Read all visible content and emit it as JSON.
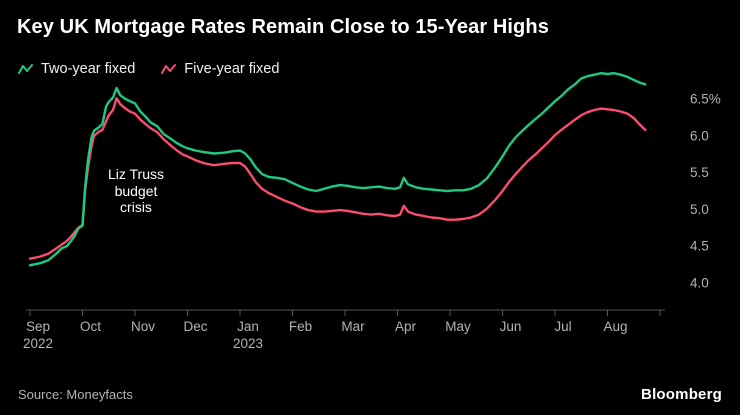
{
  "chart_data": {
    "type": "line",
    "title": "Key UK Mortgage Rates Remain Close to 15-Year Highs",
    "x_unit": "months since Sep 1, 2022 (0 = Sep 2022)",
    "x_range": [
      0,
      12
    ],
    "y_range": [
      3.9,
      7.0
    ],
    "grid": false,
    "legend_position": "top-left",
    "x_axis": {
      "months": [
        "Sep",
        "Oct",
        "Nov",
        "Dec",
        "Jan",
        "Feb",
        "Mar",
        "Apr",
        "May",
        "Jun",
        "Jul",
        "Aug"
      ],
      "year_labels": [
        {
          "label": "2022",
          "month_index": 0
        },
        {
          "label": "2023",
          "month_index": 4
        }
      ]
    },
    "y_axis": {
      "unit": "%",
      "side": "right",
      "ticks": [
        4.0,
        4.5,
        5.0,
        5.5,
        6.0,
        6.5
      ],
      "tick_labels": [
        "4.0",
        "4.5",
        "5.0",
        "5.5",
        "6.0",
        "6.5%"
      ]
    },
    "x": [
      0,
      0.2,
      0.35,
      0.5,
      0.6,
      0.7,
      0.78,
      0.85,
      0.92,
      1.0,
      1.05,
      1.1,
      1.17,
      1.22,
      1.3,
      1.38,
      1.45,
      1.5,
      1.58,
      1.65,
      1.72,
      1.8,
      1.9,
      2.0,
      2.1,
      2.2,
      2.3,
      2.42,
      2.55,
      2.68,
      2.8,
      2.9,
      3.0,
      3.15,
      3.3,
      3.5,
      3.7,
      3.85,
      4.0,
      4.1,
      4.2,
      4.3,
      4.42,
      4.55,
      4.7,
      4.85,
      5.0,
      5.15,
      5.3,
      5.45,
      5.6,
      5.75,
      5.9,
      6.05,
      6.2,
      6.35,
      6.5,
      6.65,
      6.8,
      6.95,
      7.05,
      7.12,
      7.2,
      7.35,
      7.5,
      7.65,
      7.8,
      7.95,
      8.1,
      8.25,
      8.4,
      8.55,
      8.7,
      8.85,
      9.0,
      9.12,
      9.25,
      9.38,
      9.5,
      9.63,
      9.75,
      9.88,
      10.0,
      10.12,
      10.25,
      10.38,
      10.5,
      10.62,
      10.75,
      10.88,
      11.0,
      11.12,
      11.25,
      11.38,
      11.5,
      11.62,
      11.72
    ],
    "series": [
      {
        "id": "two-year-fixed",
        "name": "Two-year fixed",
        "color": "#1ec981",
        "values": [
          4.24,
          4.27,
          4.31,
          4.4,
          4.47,
          4.5,
          4.57,
          4.64,
          4.74,
          4.78,
          5.3,
          5.65,
          5.97,
          6.07,
          6.11,
          6.16,
          6.4,
          6.46,
          6.52,
          6.65,
          6.55,
          6.51,
          6.47,
          6.44,
          6.33,
          6.26,
          6.18,
          6.13,
          6.02,
          5.96,
          5.9,
          5.86,
          5.83,
          5.8,
          5.78,
          5.76,
          5.77,
          5.79,
          5.8,
          5.76,
          5.68,
          5.57,
          5.48,
          5.44,
          5.43,
          5.41,
          5.36,
          5.31,
          5.27,
          5.25,
          5.28,
          5.31,
          5.33,
          5.32,
          5.3,
          5.29,
          5.3,
          5.31,
          5.29,
          5.28,
          5.3,
          5.43,
          5.34,
          5.3,
          5.28,
          5.27,
          5.26,
          5.25,
          5.26,
          5.26,
          5.28,
          5.33,
          5.42,
          5.56,
          5.72,
          5.86,
          5.98,
          6.07,
          6.15,
          6.23,
          6.3,
          6.39,
          6.47,
          6.54,
          6.63,
          6.7,
          6.78,
          6.81,
          6.83,
          6.85,
          6.84,
          6.85,
          6.83,
          6.8,
          6.76,
          6.72,
          6.7
        ]
      },
      {
        "id": "five-year-fixed",
        "name": "Five-year fixed",
        "color": "#f94e6d",
        "values": [
          4.33,
          4.36,
          4.4,
          4.47,
          4.52,
          4.57,
          4.63,
          4.69,
          4.75,
          4.79,
          5.25,
          5.55,
          5.85,
          6.0,
          6.05,
          6.08,
          6.2,
          6.28,
          6.35,
          6.51,
          6.43,
          6.38,
          6.33,
          6.3,
          6.22,
          6.16,
          6.1,
          6.05,
          5.95,
          5.87,
          5.8,
          5.75,
          5.72,
          5.67,
          5.63,
          5.6,
          5.62,
          5.63,
          5.63,
          5.58,
          5.48,
          5.37,
          5.28,
          5.22,
          5.17,
          5.12,
          5.08,
          5.03,
          4.99,
          4.97,
          4.97,
          4.98,
          4.99,
          4.98,
          4.96,
          4.94,
          4.93,
          4.94,
          4.92,
          4.91,
          4.93,
          5.05,
          4.97,
          4.93,
          4.91,
          4.89,
          4.88,
          4.86,
          4.86,
          4.87,
          4.89,
          4.93,
          5.01,
          5.12,
          5.25,
          5.37,
          5.48,
          5.58,
          5.67,
          5.75,
          5.83,
          5.92,
          6.01,
          6.08,
          6.15,
          6.22,
          6.28,
          6.32,
          6.35,
          6.37,
          6.36,
          6.35,
          6.33,
          6.3,
          6.24,
          6.15,
          6.08
        ]
      }
    ],
    "annotations": [
      {
        "text": "Liz Truss budget crisis",
        "lines": [
          "Liz Truss",
          "budget",
          "crisis"
        ]
      }
    ]
  },
  "footer": {
    "source": "Source: Moneyfacts",
    "brand": "Bloomberg"
  }
}
